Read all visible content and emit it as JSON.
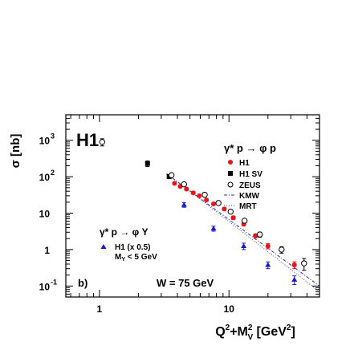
{
  "chart_data": {
    "type": "scatter",
    "panel_label": "H1",
    "sub_panel_label": "b)",
    "annotation": "W = 75 GeV",
    "ylabel": "σ [nb]",
    "xlabel": "Q²+M²V [GeV²]",
    "x_scale": "log",
    "y_scale": "log",
    "xlim": [
      0.55,
      50
    ],
    "ylim": [
      0.05,
      5000
    ],
    "x_ticks": [
      {
        "v": 1,
        "label": "1"
      },
      {
        "v": 10,
        "label": "10"
      }
    ],
    "y_ticks": [
      {
        "v": 1000,
        "base": "10",
        "exp": "3"
      },
      {
        "v": 100,
        "base": "10",
        "exp": "2"
      },
      {
        "v": 10,
        "base": "10",
        "exp": ""
      },
      {
        "v": 1,
        "base": "1",
        "exp": ""
      },
      {
        "v": 0.1,
        "base": "10",
        "exp": "-1"
      }
    ],
    "legend_top": {
      "title": "γ* p → φ p",
      "entries": [
        {
          "key": "h1",
          "label": "H1"
        },
        {
          "key": "h1sv",
          "label": "H1 SV"
        },
        {
          "key": "zeus",
          "label": "ZEUS"
        },
        {
          "key": "kmw",
          "label": "KMW"
        },
        {
          "key": "mrt",
          "label": "MRT"
        }
      ]
    },
    "legend_bottom": {
      "title": "γ* p → φ Y",
      "entries": [
        {
          "key": "h1_diss",
          "label": "H1 (x 0.5)",
          "sublabel": "MY < 5 GeV"
        }
      ]
    },
    "series": [
      {
        "key": "h1",
        "name": "H1",
        "marker": "filled-circle",
        "color": "#e8141c",
        "x": [
          3.8,
          4.2,
          4.7,
          5.3,
          5.9,
          6.7,
          7.6,
          9.2,
          10.8,
          13.0,
          16.0,
          20.0,
          32.0
        ],
        "y": [
          66,
          54,
          46,
          36,
          30,
          23,
          18,
          13,
          7.5,
          5.0,
          2.4,
          1.25,
          0.38
        ],
        "err": [
          5,
          4,
          4,
          3,
          2.5,
          2,
          1.5,
          1.2,
          0.8,
          0.5,
          0.3,
          0.2,
          0.08
        ]
      },
      {
        "key": "h1sv",
        "name": "H1 SV",
        "marker": "filled-square",
        "color": "#000000",
        "x": [
          2.35,
          3.45
        ],
        "y": [
          230,
          100
        ],
        "err": [
          40,
          10
        ]
      },
      {
        "key": "zeus",
        "name": "ZEUS",
        "marker": "open-circle",
        "color": "#000000",
        "x": [
          1.05,
          3.6,
          4.5,
          6.5,
          8.3,
          10.3,
          13.2,
          17.3,
          25.5,
          38.0
        ],
        "y": [
          900,
          110,
          62,
          32,
          19,
          11,
          6.2,
          2.6,
          1.0,
          0.42
        ],
        "err": [
          200,
          10,
          6,
          3,
          2,
          1.2,
          0.7,
          0.4,
          0.2,
          0.15
        ]
      },
      {
        "key": "h1_diss",
        "name": "H1 (x 0.5)",
        "marker": "filled-triangle",
        "color": "#1818c8",
        "x": [
          4.5,
          7.6,
          13.0,
          20.0,
          32.0
        ],
        "y": [
          17,
          3.8,
          1.25,
          0.38,
          0.15
        ],
        "err": [
          2.5,
          0.6,
          0.25,
          0.08,
          0.04
        ]
      }
    ],
    "curves": [
      {
        "key": "kmw",
        "name": "KMW",
        "style": "dash-dot",
        "color": "#2a2ae0",
        "x": [
          3.3,
          50
        ],
        "y": [
          120,
          0.1
        ]
      },
      {
        "key": "mrt",
        "name": "MRT",
        "style": "dotted",
        "color": "#555555",
        "x": [
          3.3,
          50
        ],
        "y": [
          125,
          0.07
        ]
      }
    ]
  }
}
